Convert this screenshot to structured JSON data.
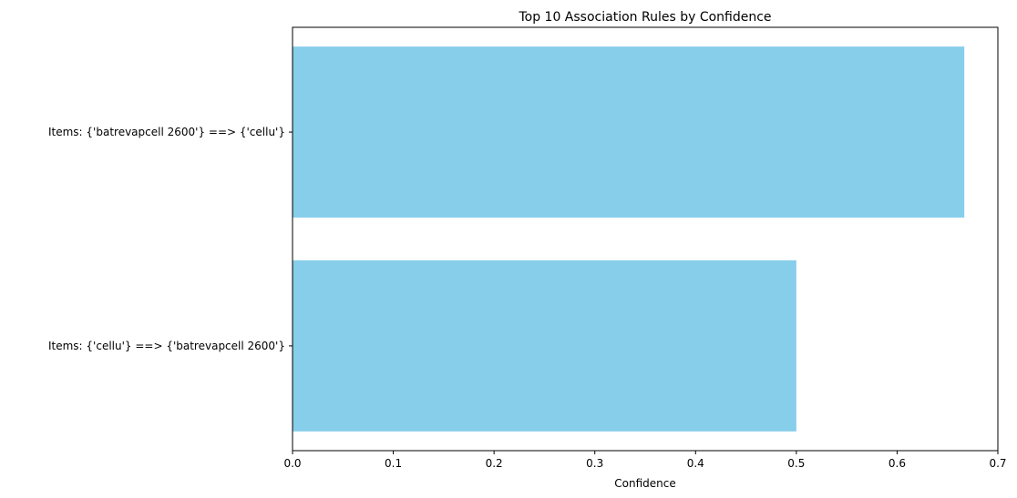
{
  "chart_data": {
    "type": "bar",
    "orientation": "horizontal",
    "title": "Top 10 Association Rules by Confidence",
    "xlabel": "Confidence",
    "ylabel": "",
    "xlim": [
      0,
      0.7
    ],
    "xticks": [
      "0.0",
      "0.1",
      "0.2",
      "0.3",
      "0.4",
      "0.5",
      "0.6",
      "0.7"
    ],
    "categories": [
      "Items: {'batrevapcell 2600'} ==> {'cellu'}",
      "Items: {'cellu'} ==> {'batrevapcell 2600'}"
    ],
    "values": [
      0.6667,
      0.5
    ],
    "bar_color": "#87ceeb",
    "grid": false,
    "legend": "none"
  }
}
